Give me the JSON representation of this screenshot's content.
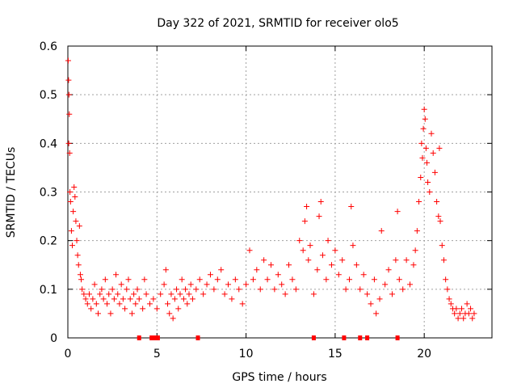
{
  "chart_data": {
    "type": "scatter",
    "title": "Day 322 of 2021, SRMTID for receiver olo5",
    "xlabel": "GPS time / hours",
    "ylabel": "SRMTID / TECUs",
    "xlim": [
      0,
      23.8
    ],
    "ylim": [
      0,
      0.6
    ],
    "x_ticks": [
      0,
      5,
      10,
      15,
      20
    ],
    "x_tick_labels": [
      "0",
      "5",
      "10",
      "15",
      "20"
    ],
    "y_ticks": [
      0,
      0.1,
      0.2,
      0.3,
      0.4,
      0.5,
      0.6
    ],
    "y_tick_labels": [
      "0",
      "0.1",
      "0.2",
      "0.3",
      "0.4",
      "0.5",
      "0.6"
    ],
    "grid": true,
    "marker": "plus",
    "color": "#ff0000",
    "series": [
      {
        "name": "SRMTID",
        "points": [
          [
            0.02,
            0.57
          ],
          [
            0.04,
            0.53
          ],
          [
            0.06,
            0.5
          ],
          [
            0.08,
            0.46
          ],
          [
            0.05,
            0.4
          ],
          [
            0.1,
            0.38
          ],
          [
            0.12,
            0.3
          ],
          [
            0.15,
            0.28
          ],
          [
            0.2,
            0.22
          ],
          [
            0.25,
            0.19
          ],
          [
            0.3,
            0.26
          ],
          [
            0.35,
            0.31
          ],
          [
            0.4,
            0.29
          ],
          [
            0.45,
            0.24
          ],
          [
            0.5,
            0.2
          ],
          [
            0.55,
            0.17
          ],
          [
            0.6,
            0.15
          ],
          [
            0.65,
            0.23
          ],
          [
            0.7,
            0.13
          ],
          [
            0.75,
            0.12
          ],
          [
            0.8,
            0.1
          ],
          [
            0.9,
            0.09
          ],
          [
            1.0,
            0.08
          ],
          [
            1.1,
            0.07
          ],
          [
            1.2,
            0.09
          ],
          [
            1.3,
            0.06
          ],
          [
            1.4,
            0.08
          ],
          [
            1.5,
            0.11
          ],
          [
            1.6,
            0.07
          ],
          [
            1.7,
            0.05
          ],
          [
            1.8,
            0.09
          ],
          [
            1.9,
            0.1
          ],
          [
            2.0,
            0.08
          ],
          [
            2.1,
            0.12
          ],
          [
            2.2,
            0.07
          ],
          [
            2.3,
            0.09
          ],
          [
            2.4,
            0.05
          ],
          [
            2.5,
            0.1
          ],
          [
            2.6,
            0.08
          ],
          [
            2.7,
            0.13
          ],
          [
            2.8,
            0.09
          ],
          [
            2.9,
            0.07
          ],
          [
            3.0,
            0.11
          ],
          [
            3.1,
            0.08
          ],
          [
            3.2,
            0.06
          ],
          [
            3.3,
            0.1
          ],
          [
            3.4,
            0.12
          ],
          [
            3.5,
            0.08
          ],
          [
            3.6,
            0.05
          ],
          [
            3.7,
            0.09
          ],
          [
            3.8,
            0.07
          ],
          [
            3.9,
            0.1
          ],
          [
            4.0,
            0.08
          ],
          [
            4.2,
            0.06
          ],
          [
            4.3,
            0.12
          ],
          [
            4.4,
            0.09
          ],
          [
            4.6,
            0.07
          ],
          [
            4.8,
            0.08
          ],
          [
            5.0,
            0.06
          ],
          [
            5.2,
            0.09
          ],
          [
            5.4,
            0.11
          ],
          [
            5.5,
            0.14
          ],
          [
            5.6,
            0.07
          ],
          [
            5.7,
            0.05
          ],
          [
            5.8,
            0.09
          ],
          [
            5.9,
            0.04
          ],
          [
            6.0,
            0.08
          ],
          [
            6.1,
            0.1
          ],
          [
            6.2,
            0.06
          ],
          [
            6.3,
            0.09
          ],
          [
            6.4,
            0.12
          ],
          [
            6.5,
            0.08
          ],
          [
            6.6,
            0.1
          ],
          [
            6.7,
            0.07
          ],
          [
            6.8,
            0.09
          ],
          [
            6.9,
            0.11
          ],
          [
            7.0,
            0.08
          ],
          [
            7.2,
            0.1
          ],
          [
            7.4,
            0.12
          ],
          [
            7.6,
            0.09
          ],
          [
            7.8,
            0.11
          ],
          [
            8.0,
            0.13
          ],
          [
            8.2,
            0.1
          ],
          [
            8.4,
            0.12
          ],
          [
            8.6,
            0.14
          ],
          [
            8.8,
            0.09
          ],
          [
            9.0,
            0.11
          ],
          [
            9.2,
            0.08
          ],
          [
            9.4,
            0.12
          ],
          [
            9.6,
            0.1
          ],
          [
            9.8,
            0.07
          ],
          [
            10.0,
            0.11
          ],
          [
            10.2,
            0.18
          ],
          [
            10.4,
            0.12
          ],
          [
            10.6,
            0.14
          ],
          [
            10.8,
            0.1
          ],
          [
            11.0,
            0.16
          ],
          [
            11.2,
            0.12
          ],
          [
            11.4,
            0.15
          ],
          [
            11.6,
            0.1
          ],
          [
            11.8,
            0.13
          ],
          [
            12.0,
            0.11
          ],
          [
            12.2,
            0.09
          ],
          [
            12.4,
            0.15
          ],
          [
            12.6,
            0.12
          ],
          [
            12.8,
            0.1
          ],
          [
            13.0,
            0.2
          ],
          [
            13.2,
            0.18
          ],
          [
            13.3,
            0.24
          ],
          [
            13.4,
            0.27
          ],
          [
            13.5,
            0.16
          ],
          [
            13.6,
            0.19
          ],
          [
            13.8,
            0.09
          ],
          [
            14.0,
            0.14
          ],
          [
            14.1,
            0.25
          ],
          [
            14.2,
            0.28
          ],
          [
            14.3,
            0.17
          ],
          [
            14.5,
            0.12
          ],
          [
            14.6,
            0.2
          ],
          [
            14.8,
            0.15
          ],
          [
            15.0,
            0.18
          ],
          [
            15.2,
            0.13
          ],
          [
            15.4,
            0.16
          ],
          [
            15.6,
            0.1
          ],
          [
            15.8,
            0.12
          ],
          [
            15.9,
            0.27
          ],
          [
            16.0,
            0.19
          ],
          [
            16.2,
            0.15
          ],
          [
            16.4,
            0.1
          ],
          [
            16.6,
            0.13
          ],
          [
            16.8,
            0.09
          ],
          [
            17.0,
            0.07
          ],
          [
            17.2,
            0.12
          ],
          [
            17.3,
            0.05
          ],
          [
            17.5,
            0.08
          ],
          [
            17.6,
            0.22
          ],
          [
            17.8,
            0.11
          ],
          [
            18.0,
            0.14
          ],
          [
            18.2,
            0.09
          ],
          [
            18.4,
            0.16
          ],
          [
            18.5,
            0.26
          ],
          [
            18.6,
            0.12
          ],
          [
            18.8,
            0.1
          ],
          [
            19.0,
            0.16
          ],
          [
            19.2,
            0.11
          ],
          [
            19.4,
            0.15
          ],
          [
            19.5,
            0.18
          ],
          [
            19.6,
            0.22
          ],
          [
            19.7,
            0.28
          ],
          [
            19.8,
            0.33
          ],
          [
            19.85,
            0.4
          ],
          [
            19.9,
            0.37
          ],
          [
            19.95,
            0.43
          ],
          [
            20.0,
            0.47
          ],
          [
            20.05,
            0.45
          ],
          [
            20.1,
            0.39
          ],
          [
            20.15,
            0.36
          ],
          [
            20.2,
            0.32
          ],
          [
            20.3,
            0.3
          ],
          [
            20.4,
            0.42
          ],
          [
            20.5,
            0.38
          ],
          [
            20.6,
            0.34
          ],
          [
            20.7,
            0.28
          ],
          [
            20.8,
            0.25
          ],
          [
            20.85,
            0.39
          ],
          [
            20.9,
            0.24
          ],
          [
            21.0,
            0.19
          ],
          [
            21.1,
            0.16
          ],
          [
            21.2,
            0.12
          ],
          [
            21.3,
            0.1
          ],
          [
            21.4,
            0.08
          ],
          [
            21.5,
            0.07
          ],
          [
            21.6,
            0.06
          ],
          [
            21.7,
            0.05
          ],
          [
            21.8,
            0.06
          ],
          [
            21.9,
            0.04
          ],
          [
            22.0,
            0.05
          ],
          [
            22.1,
            0.06
          ],
          [
            22.2,
            0.04
          ],
          [
            22.3,
            0.05
          ],
          [
            22.4,
            0.07
          ],
          [
            22.5,
            0.05
          ],
          [
            22.6,
            0.06
          ],
          [
            22.7,
            0.04
          ],
          [
            22.8,
            0.05
          ]
        ]
      }
    ],
    "baseline_markers_x": [
      4.0,
      4.7,
      4.9,
      5.05,
      7.3,
      13.8,
      15.5,
      16.4,
      16.8,
      18.5
    ]
  }
}
